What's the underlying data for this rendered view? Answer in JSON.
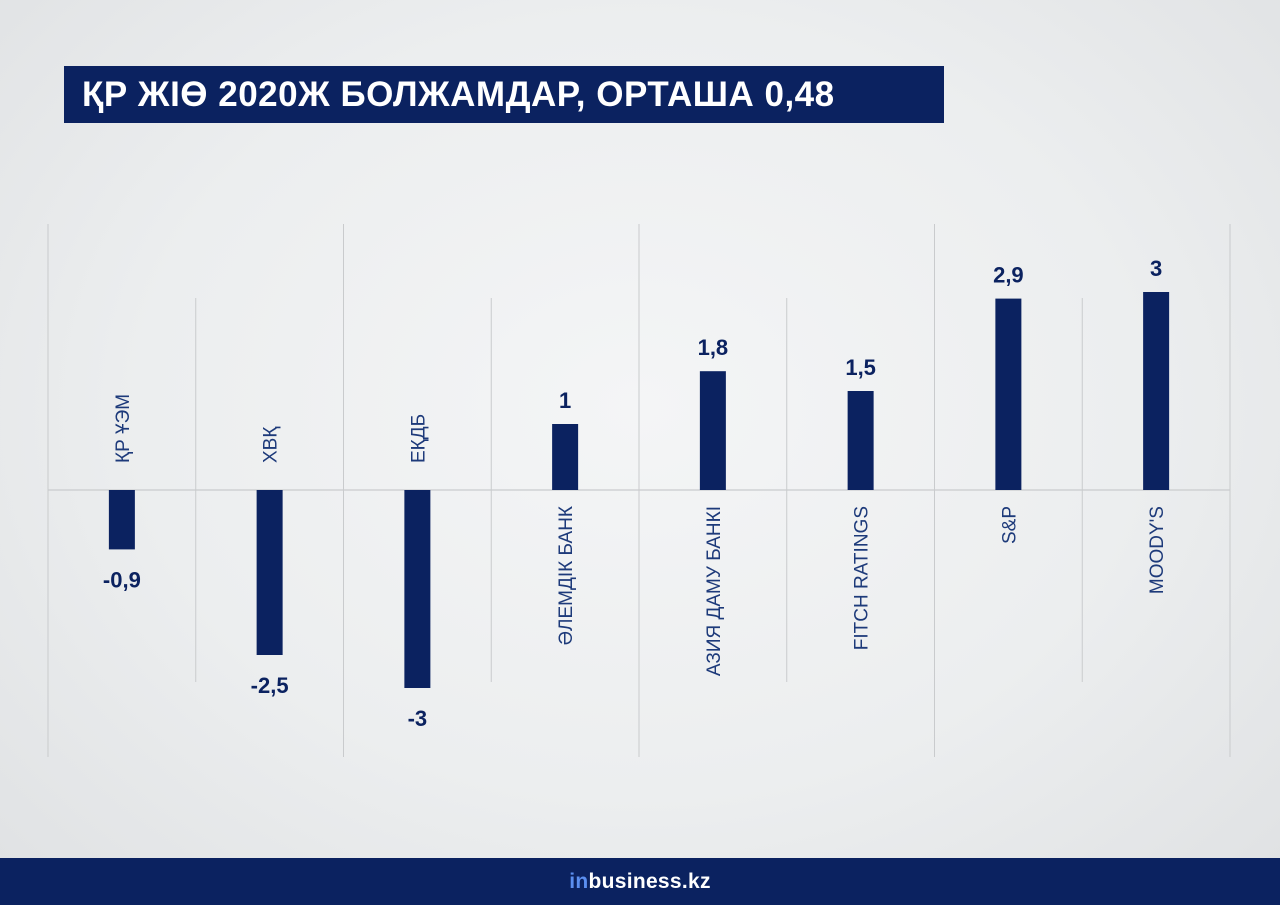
{
  "title": "ҚР ЖІӨ 2020Ж БОЛЖАМДАР, ОРТАША 0,48",
  "colors": {
    "bar": "#0b2260",
    "grid": "#c9cbcd",
    "label": "#0b2260",
    "category": "#1d3a7a"
  },
  "chart_data": {
    "type": "bar",
    "title": "ҚР ЖІӨ 2020Ж БОЛЖАМДАР, ОРТАША 0,48",
    "categories": [
      "ҚР ҰЭМ",
      "ХВҚ",
      "ЕҚДБ",
      "ӘЛЕМДІК БАНК",
      "АЗИЯ ДАМУ БАНКІ",
      "FITCH RATINGS",
      "S&P",
      "MOODY'S"
    ],
    "values": [
      -0.9,
      -2.5,
      -3,
      1,
      1.8,
      1.5,
      2.9,
      3
    ],
    "value_labels": [
      "-0,9",
      "-2,5",
      "-3",
      "1",
      "1,8",
      "1,5",
      "2,9",
      "3"
    ],
    "xlabel": "",
    "ylabel": "",
    "grid": true,
    "legend": "none"
  },
  "footer": {
    "brand_prefix": "in",
    "brand_suffix": "business.kz"
  }
}
